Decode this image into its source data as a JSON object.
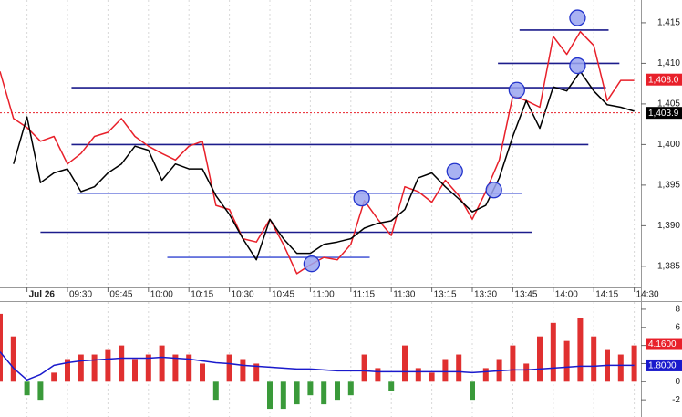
{
  "chart_data": [
    {
      "type": "line",
      "x": [
        -5,
        -4,
        -3,
        -2,
        -1,
        0,
        1,
        2,
        3,
        4,
        5,
        6,
        7,
        8,
        9,
        10,
        11,
        12,
        13,
        14,
        15,
        16,
        17,
        18,
        19,
        20,
        21,
        22,
        23,
        24,
        25,
        26,
        27,
        28,
        29,
        30,
        31,
        32,
        33,
        34,
        35,
        36,
        37,
        38,
        39,
        40,
        41,
        42
      ],
      "series": [
        {
          "color": "#e8202a",
          "values": [
            1409.0,
            1403.2,
            1402.1,
            1400.4,
            1401.0,
            1397.6,
            1398.9,
            1401.0,
            1401.5,
            1403.2,
            1401.0,
            1399.8,
            1398.9,
            1398.1,
            1399.8,
            1400.4,
            1392.5,
            1392.0,
            1388.4,
            1388.0,
            1390.8,
            1387.7,
            1384.1,
            1385.2,
            1386.1,
            1385.8,
            1387.7,
            1393.1,
            1390.8,
            1388.8,
            1394.8,
            1394.2,
            1392.9,
            1395.6,
            1393.7,
            1390.8,
            1394.2,
            1398.1,
            1406.0,
            1405.4,
            1404.6,
            1413.3,
            1411.1,
            1413.9,
            1412.2,
            1405.4,
            1407.9,
            1407.9
          ]
        },
        {
          "color": "#000000",
          "values": [
            null,
            1397.6,
            1403.4,
            1395.3,
            1396.5,
            1397.0,
            1394.2,
            1394.8,
            1396.5,
            1397.6,
            1399.8,
            1399.3,
            1395.6,
            1397.6,
            1397.0,
            1397.0,
            1393.7,
            1391.4,
            1388.4,
            1385.8,
            1390.8,
            1388.4,
            1386.6,
            1386.6,
            1387.7,
            1388.0,
            1388.4,
            1389.7,
            1390.3,
            1390.6,
            1392.0,
            1395.9,
            1396.5,
            1394.8,
            1393.3,
            1391.7,
            1392.5,
            1395.9,
            1401.0,
            1405.4,
            1402.0,
            1407.1,
            1406.6,
            1409.0,
            1406.6,
            1404.9,
            1404.6,
            1404.1
          ]
        }
      ],
      "xlim": [
        -5,
        42.5
      ],
      "xticks": [
        {
          "value": -3,
          "label": "Jul 26"
        },
        {
          "value": 0,
          "label": "09:30"
        },
        {
          "value": 3,
          "label": "09:45"
        },
        {
          "value": 6,
          "label": "10:00"
        },
        {
          "value": 9,
          "label": "10:15"
        },
        {
          "value": 12,
          "label": "10:30"
        },
        {
          "value": 15,
          "label": "10:45"
        },
        {
          "value": 18,
          "label": "11:00"
        },
        {
          "value": 21,
          "label": "11:15"
        },
        {
          "value": 24,
          "label": "11:30"
        },
        {
          "value": 27,
          "label": "13:15"
        },
        {
          "value": 30,
          "label": "13:30"
        },
        {
          "value": 33,
          "label": "13:45"
        },
        {
          "value": 36,
          "label": "14:00"
        },
        {
          "value": 39,
          "label": "14:15"
        },
        {
          "value": 42,
          "label": "14:30"
        }
      ],
      "ylim": [
        1382.4,
        1417.8
      ],
      "yticks": [
        {
          "value": 1385,
          "label": "1,385"
        },
        {
          "value": 1390,
          "label": "1,390"
        },
        {
          "value": 1395,
          "label": "1,395"
        },
        {
          "value": 1400,
          "label": "1,400"
        },
        {
          "value": 1405,
          "label": "1,405"
        },
        {
          "value": 1410,
          "label": "1,410"
        },
        {
          "value": 1415,
          "label": "1,415"
        }
      ],
      "levels": [
        {
          "value": 1414.1,
          "from": 33.5,
          "to": 40.1,
          "color": "#1c1c8c"
        },
        {
          "value": 1410.0,
          "from": 31.9,
          "to": 40.9,
          "color": "#1c1c8c"
        },
        {
          "value": 1407.0,
          "from": 0.3,
          "to": 39.9,
          "color": "#1c1c8c"
        },
        {
          "value": 1400.0,
          "from": 0.3,
          "to": 38.6,
          "color": "#1c1c8c"
        },
        {
          "value": 1394.0,
          "from": 0.7,
          "to": 33.7,
          "color": "#5060d8"
        },
        {
          "value": 1389.2,
          "from": -2,
          "to": 34.4,
          "color": "#1c1c8c"
        },
        {
          "value": 1386.1,
          "from": 7.4,
          "to": 22.4,
          "color": "#5060d8"
        }
      ],
      "markers": [
        {
          "x": 37.8,
          "y": 1415.6
        },
        {
          "x": 37.8,
          "y": 1409.7
        },
        {
          "x": 33.3,
          "y": 1406.7
        },
        {
          "x": 31.6,
          "y": 1394.4
        },
        {
          "x": 28.7,
          "y": 1396.7
        },
        {
          "x": 21.8,
          "y": 1393.4
        },
        {
          "x": 18.1,
          "y": 1385.3
        }
      ],
      "badges": [
        {
          "value": 1408.0,
          "label": "1,408.0",
          "color": "#e8202a"
        },
        {
          "value": 1403.9,
          "label": "1,403.9",
          "color": "#000000",
          "dashed_line": true
        }
      ]
    },
    {
      "type": "bar",
      "x": [
        -5,
        -4,
        -3,
        -2,
        -1,
        0,
        1,
        2,
        3,
        4,
        5,
        6,
        7,
        8,
        9,
        10,
        11,
        12,
        13,
        14,
        15,
        16,
        17,
        18,
        19,
        20,
        21,
        22,
        23,
        24,
        25,
        26,
        27,
        28,
        29,
        30,
        31,
        32,
        33,
        34,
        35,
        36,
        37,
        38,
        39,
        40,
        41,
        42
      ],
      "series": [
        {
          "color": "#e03030",
          "negative_color": "#3a9a3a",
          "values": [
            7.5,
            5,
            -1.5,
            -2,
            1,
            2.5,
            3,
            3,
            3.5,
            4,
            2.5,
            3,
            4,
            3,
            3,
            2,
            -2,
            3,
            2.5,
            2,
            -3,
            -3,
            -2.5,
            -1.5,
            -2.5,
            -2,
            -1.5,
            3,
            1.5,
            -1,
            4,
            1.5,
            1,
            2.5,
            3,
            -2,
            1.5,
            2.5,
            4,
            2,
            5,
            6.5,
            4.5,
            7,
            5,
            3.5,
            3,
            4
          ]
        },
        {
          "type": "line",
          "color": "#1a1acc",
          "values": [
            3.3,
            1.5,
            0.2,
            0.8,
            1.8,
            2.1,
            2.3,
            2.4,
            2.5,
            2.6,
            2.6,
            2.6,
            2.7,
            2.6,
            2.5,
            2.3,
            2.1,
            2.0,
            1.8,
            1.7,
            1.6,
            1.5,
            1.4,
            1.4,
            1.3,
            1.2,
            1.2,
            1.2,
            1.1,
            1.1,
            1.1,
            1.1,
            1.1,
            1.1,
            1.1,
            1.0,
            1.1,
            1.2,
            1.3,
            1.3,
            1.4,
            1.5,
            1.6,
            1.7,
            1.7,
            1.8,
            1.8,
            1.8
          ]
        }
      ],
      "xlim": [
        -5,
        42.5
      ],
      "ylim": [
        -3.9,
        8.8
      ],
      "yticks": [
        -2,
        0,
        2,
        4,
        6,
        8
      ],
      "badges": [
        {
          "value": 4.16,
          "label": "4.1600",
          "color": "#e8202a"
        },
        {
          "value": 1.8,
          "label": "1.8000",
          "color": "#1a1acc"
        }
      ]
    }
  ]
}
